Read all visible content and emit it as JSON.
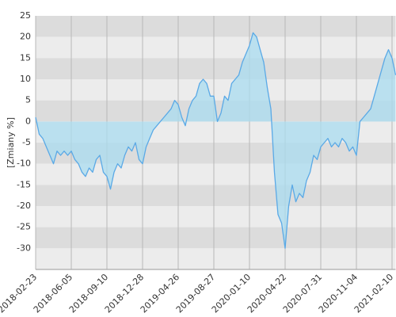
{
  "chart_data": {
    "type": "area",
    "y_label": "[Zmiany %]",
    "values": [
      1,
      -3,
      -4,
      -6,
      -8,
      -10,
      -7,
      -8,
      -7,
      -8,
      -7,
      -9,
      -10,
      -12,
      -13,
      -11,
      -12,
      -9,
      -8,
      -12,
      -13,
      -16,
      -12,
      -10,
      -11,
      -8,
      -6,
      -7,
      -5,
      -9,
      -10,
      -6,
      -4,
      -2,
      -1,
      0,
      1,
      2,
      3,
      5,
      4,
      1,
      -1,
      3,
      5,
      6,
      9,
      10,
      9,
      6,
      6,
      0,
      2,
      6,
      5,
      9,
      10,
      11,
      14,
      16,
      18,
      21,
      20,
      17,
      14,
      8,
      3,
      -12,
      -22,
      -24,
      -30,
      -20,
      -15,
      -19,
      -17,
      -18,
      -14,
      -12,
      -8,
      -9,
      -6,
      -5,
      -4,
      -6,
      -5,
      -6,
      -4,
      -5,
      -7,
      -6,
      -8,
      0,
      1,
      2,
      3,
      6,
      9,
      12,
      15,
      17,
      15,
      11
    ],
    "line_color": "#5aa9e6",
    "fill_color": "#a9dcf0",
    "band_colors": [
      "#dcdcdc",
      "#ececec"
    ],
    "xlim": [
      0,
      101
    ],
    "xticks": [
      {
        "value": 0,
        "label": "2018-02-23"
      },
      {
        "value": 10,
        "label": "2018-06-05"
      },
      {
        "value": 20,
        "label": "2018-09-10"
      },
      {
        "value": 30,
        "label": "2018-12-28"
      },
      {
        "value": 40,
        "label": "2019-04-26"
      },
      {
        "value": 50,
        "label": "2019-08-27"
      },
      {
        "value": 60,
        "label": "2020-01-10"
      },
      {
        "value": 70,
        "label": "2020-04-22"
      },
      {
        "value": 80,
        "label": "2020-07-31"
      },
      {
        "value": 90,
        "label": "2020-11-04"
      },
      {
        "value": 100,
        "label": "2021-02-10"
      }
    ],
    "ylim": [
      -35,
      25
    ],
    "yticks": [
      -30,
      -25,
      -20,
      -15,
      -10,
      -5,
      0,
      5,
      10,
      15,
      20,
      25
    ],
    "grid": true
  }
}
